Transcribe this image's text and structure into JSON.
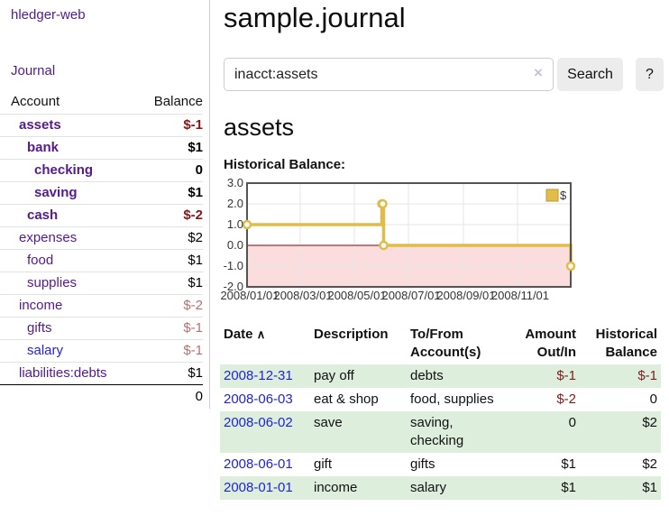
{
  "app": {
    "brand": "hledger-web",
    "nav": {
      "journal": "Journal"
    }
  },
  "sidebar": {
    "header": {
      "account": "Account",
      "balance": "Balance"
    },
    "accounts": [
      {
        "name": "assets",
        "indent": 1,
        "bold": true,
        "name_color": "purple",
        "balance": "$-1",
        "balance_color": "dark-red"
      },
      {
        "name": "bank",
        "indent": 2,
        "bold": true,
        "name_color": "purple",
        "balance": "$1",
        "balance_color": "black"
      },
      {
        "name": "checking",
        "indent": 3,
        "bold": true,
        "name_color": "purple",
        "balance": "0",
        "balance_color": "black"
      },
      {
        "name": "saving",
        "indent": 3,
        "bold": true,
        "name_color": "purple",
        "balance": "$1",
        "balance_color": "black"
      },
      {
        "name": "cash",
        "indent": 2,
        "bold": true,
        "name_color": "purple",
        "balance": "$-2",
        "balance_color": "dark-red"
      },
      {
        "name": "expenses",
        "indent": 1,
        "bold": false,
        "name_color": "purple",
        "balance": "$2",
        "balance_color": "black"
      },
      {
        "name": "food",
        "indent": 2,
        "bold": false,
        "name_color": "purple",
        "balance": "$1",
        "balance_color": "black"
      },
      {
        "name": "supplies",
        "indent": 2,
        "bold": false,
        "name_color": "purple",
        "balance": "$1",
        "balance_color": "black"
      },
      {
        "name": "income",
        "indent": 1,
        "bold": false,
        "name_color": "purple",
        "balance": "$-2",
        "balance_color": "muted-red"
      },
      {
        "name": "gifts",
        "indent": 2,
        "bold": false,
        "name_color": "purple",
        "balance": "$-1",
        "balance_color": "muted-red"
      },
      {
        "name": "salary",
        "indent": 2,
        "bold": false,
        "name_color": "blue",
        "balance": "$-1",
        "balance_color": "muted-red"
      },
      {
        "name": "liabilities:debts",
        "indent": 1,
        "bold": false,
        "name_color": "purple",
        "balance": "$1",
        "balance_color": "black"
      }
    ],
    "total": "0"
  },
  "main": {
    "title": "sample.journal",
    "search": {
      "value": "inacct:assets",
      "clear_icon": "×",
      "button_label": "Search",
      "help_label": "?"
    },
    "account_heading": "assets",
    "chart_title": "Historical Balance:"
  },
  "chart_data": {
    "type": "line",
    "step": true,
    "title": "Historical Balance:",
    "legend": {
      "label": "$",
      "position": "top-right"
    },
    "series": [
      {
        "name": "$",
        "x": [
          "2008/01/01",
          "2008/06/01",
          "2008/06/02",
          "2008/06/03",
          "2008/12/31"
        ],
        "y": [
          1,
          2,
          2,
          0,
          -1
        ]
      }
    ],
    "xrange": [
      "2008/01/01",
      "2008/12/31"
    ],
    "ylim": [
      -2,
      3
    ],
    "yticks": [
      3.0,
      2.0,
      1.0,
      0.0,
      -1.0,
      -2.0
    ],
    "ytick_labels": [
      "3.0",
      "2.0",
      "1.0",
      "0.0",
      "-1.0",
      "-2.0"
    ],
    "xticks": [
      "2008/01/01",
      "2008/03/01",
      "2008/05/01",
      "2008/07/01",
      "2008/09/01",
      "2008/11/01"
    ],
    "grid": true,
    "colors": {
      "line": "#E2BC49",
      "point_fill": "#ffffff",
      "negative_region": "#fbdddd",
      "zero_line": "#8b0000",
      "grid": "#e6e6e6",
      "border": "#545454",
      "legend_border": "#bd9a2f"
    }
  },
  "table": {
    "headers": [
      "Date",
      "Description",
      "To/From Account(s)",
      "Amount Out/In",
      "Historical Balance"
    ],
    "sort_icon": "∧",
    "rows": [
      {
        "date": "2008-12-31",
        "description": "pay off",
        "accounts": "debts",
        "amount": "$-1",
        "balance": "$-1"
      },
      {
        "date": "2008-06-03",
        "description": "eat & shop",
        "accounts": "food, supplies",
        "amount": "$-2",
        "balance": "0"
      },
      {
        "date": "2008-06-02",
        "description": "save",
        "accounts": "saving, checking",
        "amount": "0",
        "balance": "$2"
      },
      {
        "date": "2008-06-01",
        "description": "gift",
        "accounts": "gifts",
        "amount": "$1",
        "balance": "$2"
      },
      {
        "date": "2008-01-01",
        "description": "income",
        "accounts": "salary",
        "amount": "$1",
        "balance": "$1"
      }
    ]
  }
}
